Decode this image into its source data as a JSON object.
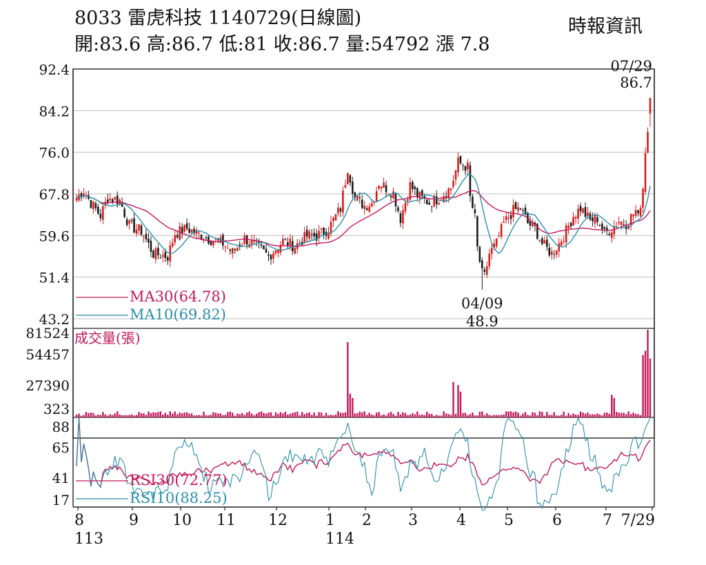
{
  "header": {
    "title": "8033  雷虎科技 1140729(日線圖)",
    "ohlc": "開:83.6 高:86.7 低:81 收:86.7 量:54792 漲 7.8",
    "source": "時報資訊"
  },
  "chart_data": [
    {
      "type": "candlestick",
      "panel": "price",
      "y_ticks": [
        "92.4",
        "84.2",
        "76.0",
        "67.8",
        "59.6",
        "51.4",
        "43.2"
      ],
      "ylim": [
        43.2,
        92.4
      ],
      "grid": true,
      "legend": [
        {
          "label": "MA30(64.78)",
          "color": "#c2185b"
        },
        {
          "label": "MA10(69.82)",
          "color": "#2a8ea8"
        }
      ],
      "annotations": [
        {
          "date": "07/29",
          "value": "86.7",
          "kind": "high"
        },
        {
          "date": "04/09",
          "value": "48.9",
          "kind": "low"
        }
      ],
      "last_close": 86.7,
      "period_high": 86.7,
      "period_low": 48.9
    },
    {
      "type": "bar",
      "panel": "volume",
      "title": "成交量(張)",
      "y_ticks": [
        "81524",
        "54457",
        "27390",
        "323"
      ],
      "ylim": [
        323,
        81524
      ],
      "color": "#c2185b"
    },
    {
      "type": "line",
      "panel": "rsi",
      "y_ticks": [
        "88",
        "65",
        "41",
        "17"
      ],
      "ylim": [
        17,
        88
      ],
      "series": [
        {
          "name": "RSI30(72.77)",
          "color": "#c2185b"
        },
        {
          "name": "RSI10(88.25)",
          "color": "#2a8ea8"
        }
      ]
    }
  ],
  "x_axis": {
    "months": [
      {
        "label": "8",
        "year": "113"
      },
      {
        "label": "9"
      },
      {
        "label": "10"
      },
      {
        "label": "11"
      },
      {
        "label": "12"
      },
      {
        "label": "1",
        "year": "114"
      },
      {
        "label": "2"
      },
      {
        "label": "3"
      },
      {
        "label": "4"
      },
      {
        "label": "5"
      },
      {
        "label": "6"
      },
      {
        "label": "7"
      },
      {
        "label": "7/29"
      }
    ]
  },
  "colors": {
    "up": "#d81b1b",
    "down": "#1a1a1a",
    "ma30": "#c2185b",
    "ma10": "#2a8ea8",
    "volume": "#c2185b",
    "grid": "#bdbdbd"
  }
}
